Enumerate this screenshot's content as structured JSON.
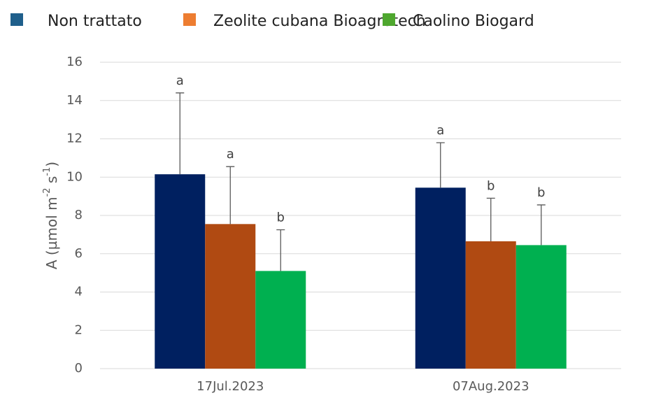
{
  "chart_data": {
    "type": "bar",
    "ylabel": [
      "A (µmol m",
      "-2",
      " s",
      "-1",
      ")"
    ],
    "categories": [
      "17Jul.2023",
      "07Aug.2023"
    ],
    "series": [
      {
        "name": "Non trattato",
        "color": "#002060",
        "legend_color": "#1f5f8b",
        "values": [
          10.15,
          9.45
        ],
        "errors": [
          4.25,
          2.35
        ],
        "letters": [
          "a",
          "a"
        ]
      },
      {
        "name": "Zeolite cubana Bioagrotech",
        "color": "#b04a12",
        "legend_color": "#ed7d31",
        "values": [
          7.55,
          6.65
        ],
        "errors": [
          3.0,
          2.25
        ],
        "letters": [
          "a",
          "b"
        ]
      },
      {
        "name": "Caolino Biogard",
        "color": "#00b050",
        "legend_color": "#4ea72e",
        "values": [
          5.1,
          6.45
        ],
        "errors": [
          2.15,
          2.1
        ],
        "letters": [
          "b",
          "b"
        ]
      }
    ],
    "ylim": [
      0,
      16
    ],
    "yticks": [
      0,
      2,
      4,
      6,
      8,
      10,
      12,
      14,
      16
    ],
    "grid": true,
    "legend": "top"
  }
}
